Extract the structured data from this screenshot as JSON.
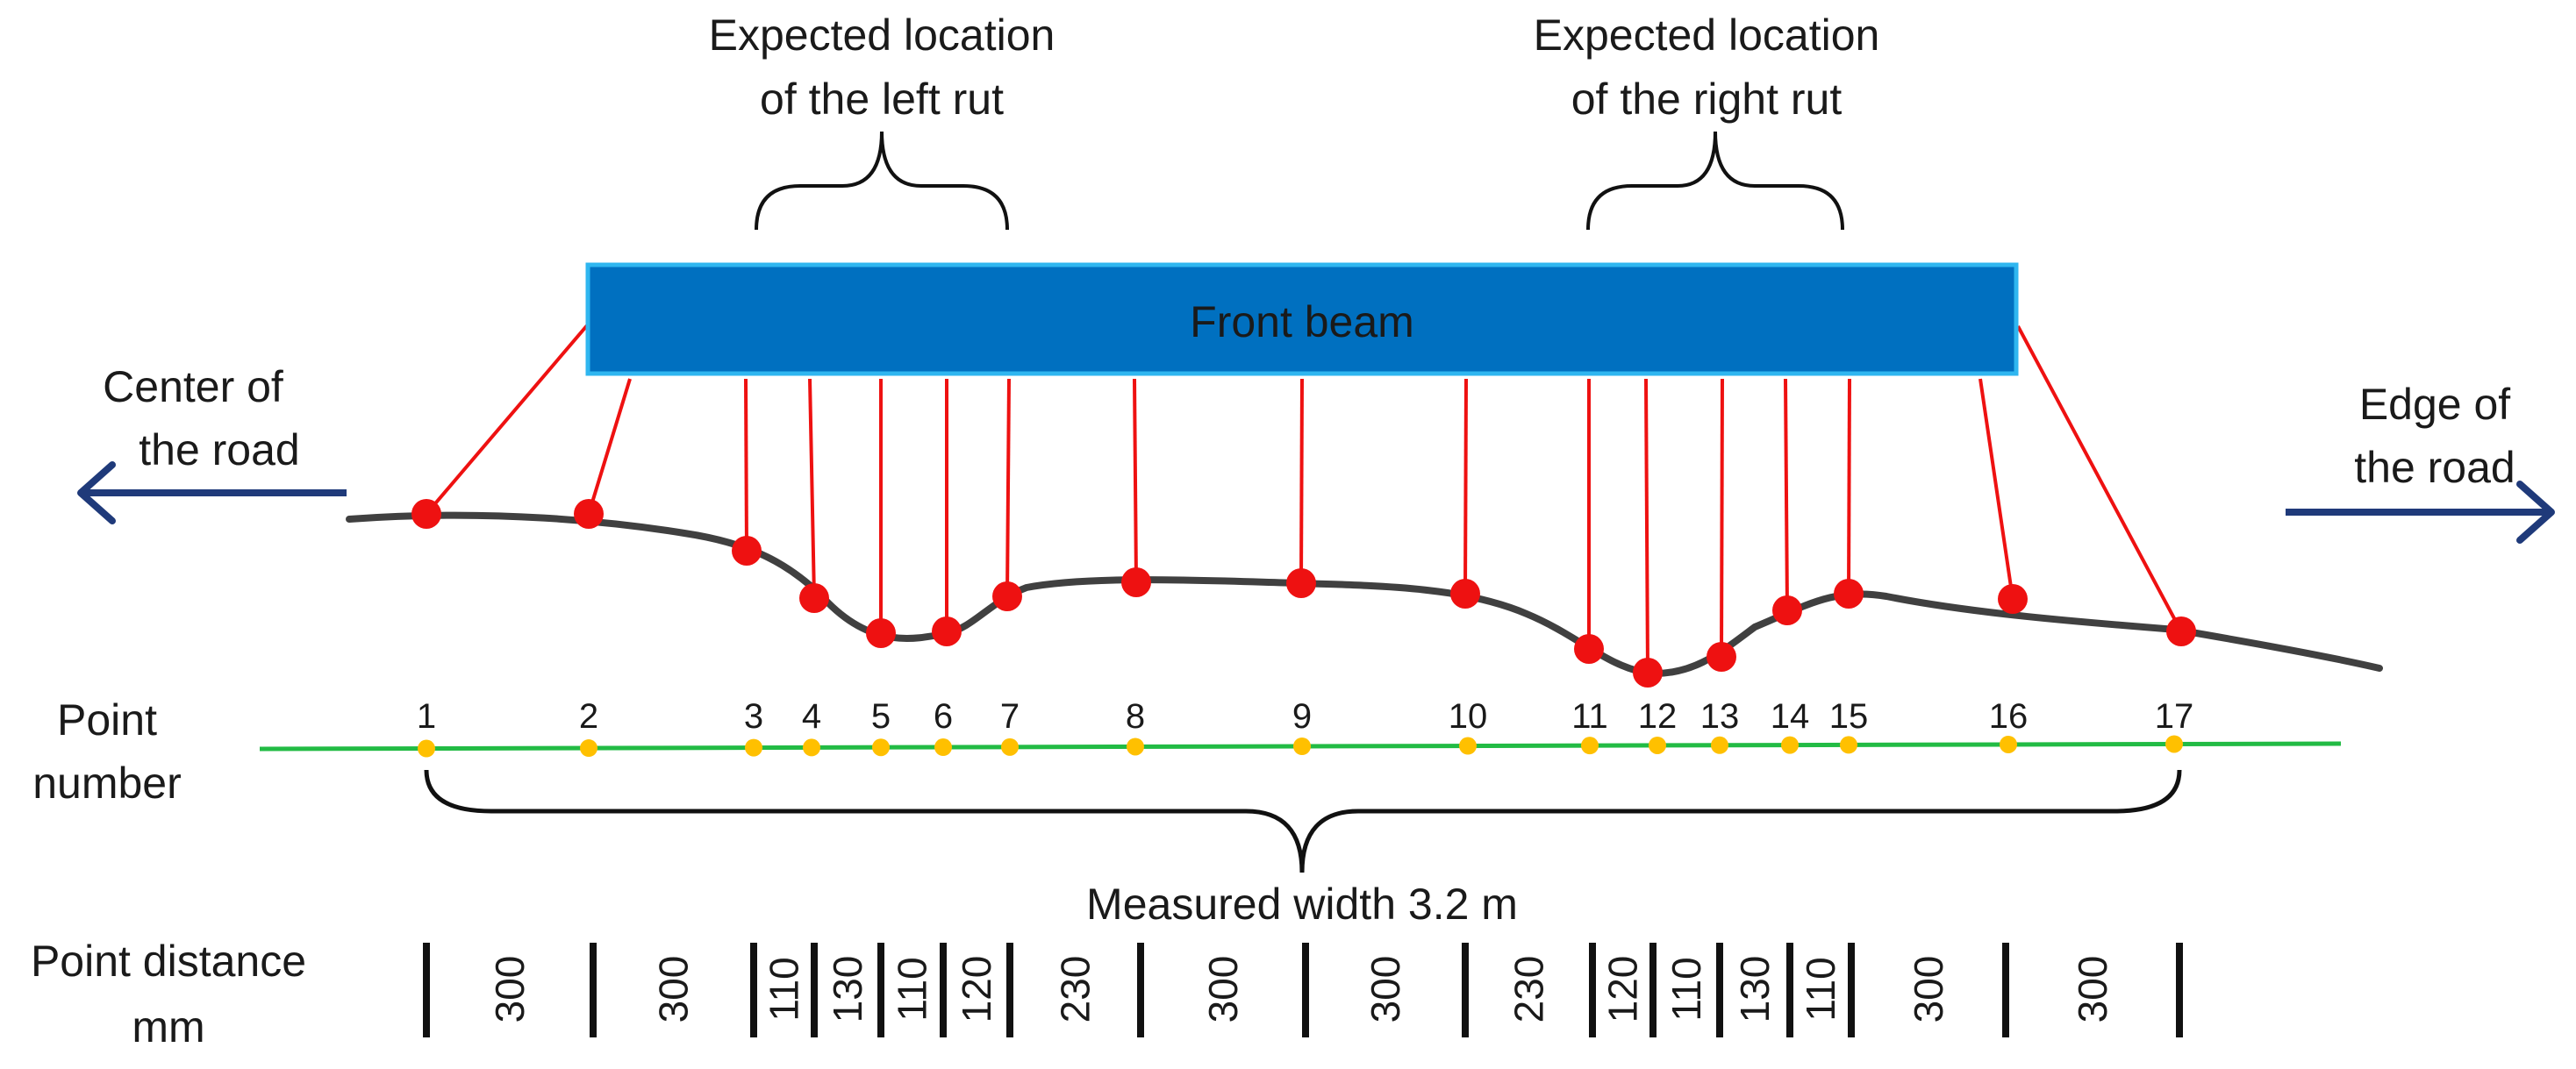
{
  "labels": {
    "left_rut_line1": "Expected location",
    "left_rut_line2": "of the left rut",
    "right_rut_line1": "Expected location",
    "right_rut_line2": "of the right rut",
    "front_beam": "Front beam",
    "center_line1": "Center of",
    "center_line2": "the road",
    "edge_line1": "Edge of",
    "edge_line2": "the road",
    "point_line1": "Point",
    "point_line2": "number",
    "measured_width": "Measured width 3.2 m",
    "distance_line1": "Point distance",
    "distance_line2": "mm"
  },
  "points": [
    "1",
    "2",
    "3",
    "4",
    "5",
    "6",
    "7",
    "8",
    "9",
    "10",
    "11",
    "12",
    "13",
    "14",
    "15",
    "16",
    "17"
  ],
  "distances": [
    "300",
    "300",
    "110",
    "130",
    "110",
    "120",
    "230",
    "300",
    "300",
    "230",
    "120",
    "110",
    "130",
    "110",
    "300",
    "300"
  ],
  "colors": {
    "beam_fill": "#0070c0",
    "beam_border": "#2fb6f0",
    "sensor_red": "#ee1111",
    "road_profile": "#404040",
    "baseline_green": "#22bb44",
    "point_marker": "#ffc000",
    "arrow_navy": "#1f3a7a"
  }
}
